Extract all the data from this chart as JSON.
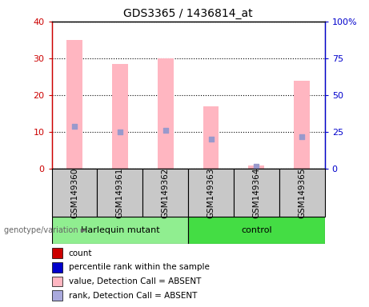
{
  "title": "GDS3365 / 1436814_at",
  "samples": [
    "GSM149360",
    "GSM149361",
    "GSM149362",
    "GSM149363",
    "GSM149364",
    "GSM149365"
  ],
  "pink_values": [
    35,
    28.5,
    30,
    17,
    1,
    24
  ],
  "blue_dot_values": [
    29,
    25,
    26,
    20,
    1.5,
    22
  ],
  "blue_dot_values_right_scale": [
    29,
    25,
    26,
    20,
    1.5,
    22
  ],
  "ylim_left": [
    0,
    40
  ],
  "ylim_right": [
    0,
    100
  ],
  "yticks_left": [
    0,
    10,
    20,
    30,
    40
  ],
  "yticks_right": [
    0,
    25,
    50,
    75,
    100
  ],
  "ytick_labels_right": [
    "0",
    "25",
    "50",
    "75",
    "100%"
  ],
  "left_axis_color": "#CC0000",
  "right_axis_color": "#0000CC",
  "pink_bar_color": "#FFB6C1",
  "blue_dot_color": "#9999CC",
  "legend_items": [
    {
      "color": "#CC0000",
      "label": "count"
    },
    {
      "color": "#0000CC",
      "label": "percentile rank within the sample"
    },
    {
      "color": "#FFB6C1",
      "label": "value, Detection Call = ABSENT"
    },
    {
      "color": "#AAAADD",
      "label": "rank, Detection Call = ABSENT"
    }
  ],
  "bar_width": 0.35,
  "title_fontsize": 10,
  "group1_color": "#90EE90",
  "group2_color": "#44DD44",
  "sample_box_color": "#C8C8C8"
}
